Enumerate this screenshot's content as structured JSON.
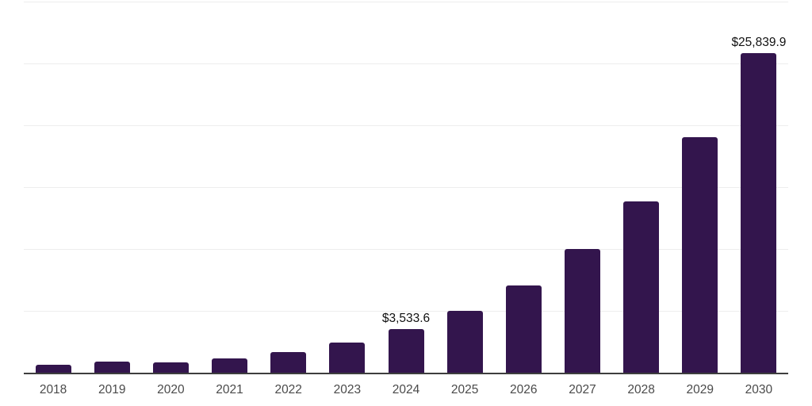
{
  "chart_data": {
    "type": "bar",
    "title": "",
    "xlabel": "",
    "ylabel": "",
    "categories": [
      "2018",
      "2019",
      "2020",
      "2021",
      "2022",
      "2023",
      "2024",
      "2025",
      "2026",
      "2027",
      "2028",
      "2029",
      "2030"
    ],
    "values": [
      640,
      880,
      830,
      1135,
      1650,
      2420,
      3533.6,
      4970,
      7060,
      10030,
      13830,
      19020,
      25839.9
    ],
    "value_labels": [
      "",
      "",
      "",
      "",
      "",
      "",
      "$3,533.6",
      "",
      "",
      "",
      "",
      "",
      "$25,839.9"
    ],
    "ylim": [
      0,
      30000
    ],
    "gridline_step": 5000,
    "grid": true,
    "legend": false,
    "colors": {
      "bar": "#33154d",
      "gridline": "#ededed",
      "axis_line": "#3e3e3e",
      "tick_label": "#4a4a4a",
      "value_label": "#111111",
      "background": "#ffffff"
    }
  }
}
